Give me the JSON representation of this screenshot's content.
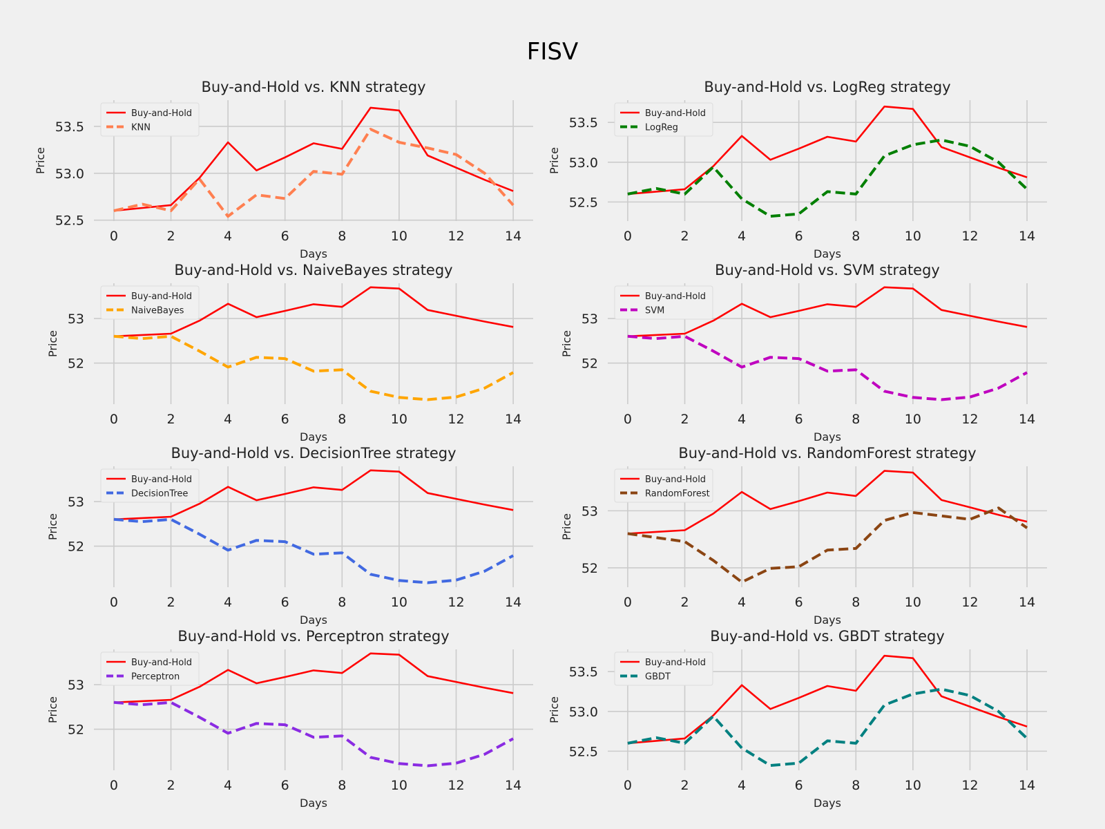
{
  "figure": {
    "title": "FISV",
    "background": "#f0f0f0"
  },
  "chart_data": [
    {
      "type": "line",
      "title": "Buy-and-Hold vs. KNN strategy",
      "xlabel": "Days",
      "ylabel": "Price",
      "xlim": [
        -0.7,
        14.7
      ],
      "ylim": [
        52.49,
        53.78
      ],
      "xticks": [
        0,
        2,
        4,
        6,
        8,
        10,
        12,
        14
      ],
      "yticks": [
        52.5,
        53.0,
        53.5
      ],
      "ytick_labels": [
        "52.5",
        "53.0",
        "53.5"
      ],
      "grid": true,
      "legend_position": "upper-left",
      "x": [
        0,
        1,
        2,
        3,
        4,
        5,
        6,
        7,
        8,
        9,
        10,
        11,
        12,
        13,
        14
      ],
      "series": [
        {
          "name": "Buy-and-Hold",
          "color": "#ff0000",
          "style": "solid",
          "values": [
            52.6,
            52.63,
            52.66,
            52.95,
            53.33,
            53.03,
            53.17,
            53.32,
            53.26,
            53.7,
            53.67,
            53.19,
            53.06,
            52.93,
            52.81
          ]
        },
        {
          "name": "KNN",
          "color": "#ff7f50",
          "style": "dashed",
          "values": [
            52.6,
            52.67,
            52.6,
            52.94,
            52.54,
            52.77,
            52.73,
            53.02,
            52.99,
            53.47,
            53.33,
            53.27,
            53.2,
            53.0,
            52.66
          ]
        }
      ]
    },
    {
      "type": "line",
      "title": "Buy-and-Hold vs. LogReg strategy",
      "xlabel": "Days",
      "ylabel": "Price",
      "xlim": [
        -0.7,
        14.7
      ],
      "ylim": [
        52.26,
        53.78
      ],
      "xticks": [
        0,
        2,
        4,
        6,
        8,
        10,
        12,
        14
      ],
      "yticks": [
        52.5,
        53.0,
        53.5
      ],
      "ytick_labels": [
        "52.5",
        "53.0",
        "53.5"
      ],
      "grid": true,
      "legend_position": "upper-left",
      "x": [
        0,
        1,
        2,
        3,
        4,
        5,
        6,
        7,
        8,
        9,
        10,
        11,
        12,
        13,
        14
      ],
      "series": [
        {
          "name": "Buy-and-Hold",
          "color": "#ff0000",
          "style": "solid",
          "values": [
            52.6,
            52.63,
            52.66,
            52.95,
            53.33,
            53.03,
            53.17,
            53.32,
            53.26,
            53.7,
            53.67,
            53.19,
            53.06,
            52.93,
            52.81
          ]
        },
        {
          "name": "LogReg",
          "color": "#007f00",
          "style": "dashed",
          "values": [
            52.6,
            52.67,
            52.6,
            52.94,
            52.54,
            52.32,
            52.35,
            52.63,
            52.6,
            53.08,
            53.22,
            53.28,
            53.2,
            53.0,
            52.66
          ]
        }
      ]
    },
    {
      "type": "line",
      "title": "Buy-and-Hold vs. NaiveBayes strategy",
      "xlabel": "Days",
      "ylabel": "Price",
      "xlim": [
        -0.7,
        14.7
      ],
      "ylim": [
        51.08,
        53.79
      ],
      "xticks": [
        0,
        2,
        4,
        6,
        8,
        10,
        12,
        14
      ],
      "yticks": [
        52,
        53
      ],
      "ytick_labels": [
        "52",
        "53"
      ],
      "grid": true,
      "legend_position": "upper-left",
      "x": [
        0,
        1,
        2,
        3,
        4,
        5,
        6,
        7,
        8,
        9,
        10,
        11,
        12,
        13,
        14
      ],
      "series": [
        {
          "name": "Buy-and-Hold",
          "color": "#ff0000",
          "style": "solid",
          "values": [
            52.6,
            52.63,
            52.66,
            52.95,
            53.33,
            53.03,
            53.17,
            53.32,
            53.26,
            53.7,
            53.67,
            53.19,
            53.06,
            52.93,
            52.81
          ]
        },
        {
          "name": "NaiveBayes",
          "color": "#ffa500",
          "style": "dashed",
          "values": [
            52.6,
            52.55,
            52.6,
            52.27,
            51.91,
            52.13,
            52.1,
            51.82,
            51.85,
            51.37,
            51.23,
            51.18,
            51.24,
            51.44,
            51.79
          ]
        }
      ]
    },
    {
      "type": "line",
      "title": "Buy-and-Hold vs. SVM strategy",
      "xlabel": "Days",
      "ylabel": "Price",
      "xlim": [
        -0.7,
        14.7
      ],
      "ylim": [
        51.08,
        53.79
      ],
      "xticks": [
        0,
        2,
        4,
        6,
        8,
        10,
        12,
        14
      ],
      "yticks": [
        52,
        53
      ],
      "ytick_labels": [
        "52",
        "53"
      ],
      "grid": true,
      "legend_position": "upper-left",
      "x": [
        0,
        1,
        2,
        3,
        4,
        5,
        6,
        7,
        8,
        9,
        10,
        11,
        12,
        13,
        14
      ],
      "series": [
        {
          "name": "Buy-and-Hold",
          "color": "#ff0000",
          "style": "solid",
          "values": [
            52.6,
            52.63,
            52.66,
            52.95,
            53.33,
            53.03,
            53.17,
            53.32,
            53.26,
            53.7,
            53.67,
            53.19,
            53.06,
            52.93,
            52.81
          ]
        },
        {
          "name": "SVM",
          "color": "#bf00bf",
          "style": "dashed",
          "values": [
            52.6,
            52.55,
            52.6,
            52.27,
            51.91,
            52.13,
            52.1,
            51.82,
            51.85,
            51.37,
            51.23,
            51.18,
            51.24,
            51.44,
            51.79
          ]
        }
      ]
    },
    {
      "type": "line",
      "title": "Buy-and-Hold vs. DecisionTree strategy",
      "xlabel": "Days",
      "ylabel": "Price",
      "xlim": [
        -0.7,
        14.7
      ],
      "ylim": [
        51.08,
        53.79
      ],
      "xticks": [
        0,
        2,
        4,
        6,
        8,
        10,
        12,
        14
      ],
      "yticks": [
        52,
        53
      ],
      "ytick_labels": [
        "52",
        "53"
      ],
      "grid": true,
      "legend_position": "upper-left",
      "x": [
        0,
        1,
        2,
        3,
        4,
        5,
        6,
        7,
        8,
        9,
        10,
        11,
        12,
        13,
        14
      ],
      "series": [
        {
          "name": "Buy-and-Hold",
          "color": "#ff0000",
          "style": "solid",
          "values": [
            52.6,
            52.63,
            52.66,
            52.95,
            53.33,
            53.03,
            53.17,
            53.32,
            53.26,
            53.7,
            53.67,
            53.19,
            53.06,
            52.93,
            52.81
          ]
        },
        {
          "name": "DecisionTree",
          "color": "#4169e1",
          "style": "dashed",
          "values": [
            52.6,
            52.55,
            52.6,
            52.27,
            51.91,
            52.13,
            52.1,
            51.82,
            51.85,
            51.37,
            51.23,
            51.18,
            51.24,
            51.44,
            51.79
          ]
        }
      ]
    },
    {
      "type": "line",
      "title": "Buy-and-Hold vs. RandomForest strategy",
      "xlabel": "Days",
      "ylabel": "Price",
      "xlim": [
        -0.7,
        14.7
      ],
      "ylim": [
        51.66,
        53.78
      ],
      "xticks": [
        0,
        2,
        4,
        6,
        8,
        10,
        12,
        14
      ],
      "yticks": [
        52,
        53
      ],
      "ytick_labels": [
        "52",
        "53"
      ],
      "grid": true,
      "legend_position": "upper-left",
      "x": [
        0,
        1,
        2,
        3,
        4,
        5,
        6,
        7,
        8,
        9,
        10,
        11,
        12,
        13,
        14
      ],
      "series": [
        {
          "name": "Buy-and-Hold",
          "color": "#ff0000",
          "style": "solid",
          "values": [
            52.6,
            52.63,
            52.66,
            52.95,
            53.33,
            53.03,
            53.17,
            53.32,
            53.26,
            53.7,
            53.67,
            53.19,
            53.06,
            52.93,
            52.81
          ]
        },
        {
          "name": "RandomForest",
          "color": "#8b4513",
          "style": "dashed",
          "values": [
            52.6,
            52.53,
            52.46,
            52.13,
            51.75,
            51.99,
            52.02,
            52.31,
            52.34,
            52.83,
            52.97,
            52.91,
            52.85,
            53.05,
            52.7
          ]
        }
      ]
    },
    {
      "type": "line",
      "title": "Buy-and-Hold vs. Perceptron strategy",
      "xlabel": "Days",
      "ylabel": "Price",
      "xlim": [
        -0.7,
        14.7
      ],
      "ylim": [
        51.08,
        53.79
      ],
      "xticks": [
        0,
        2,
        4,
        6,
        8,
        10,
        12,
        14
      ],
      "yticks": [
        52,
        53
      ],
      "ytick_labels": [
        "52",
        "53"
      ],
      "grid": true,
      "legend_position": "upper-left",
      "x": [
        0,
        1,
        2,
        3,
        4,
        5,
        6,
        7,
        8,
        9,
        10,
        11,
        12,
        13,
        14
      ],
      "series": [
        {
          "name": "Buy-and-Hold",
          "color": "#ff0000",
          "style": "solid",
          "values": [
            52.6,
            52.63,
            52.66,
            52.95,
            53.33,
            53.03,
            53.17,
            53.32,
            53.26,
            53.7,
            53.67,
            53.19,
            53.06,
            52.93,
            52.81
          ]
        },
        {
          "name": "Perceptron",
          "color": "#8a2be2",
          "style": "dashed",
          "values": [
            52.6,
            52.55,
            52.6,
            52.27,
            51.91,
            52.13,
            52.1,
            51.82,
            51.85,
            51.37,
            51.23,
            51.18,
            51.24,
            51.44,
            51.79
          ]
        }
      ]
    },
    {
      "type": "line",
      "title": "Buy-and-Hold vs. GBDT strategy",
      "xlabel": "Days",
      "ylabel": "Price",
      "xlim": [
        -0.7,
        14.7
      ],
      "ylim": [
        52.26,
        53.78
      ],
      "xticks": [
        0,
        2,
        4,
        6,
        8,
        10,
        12,
        14
      ],
      "yticks": [
        52.5,
        53.0,
        53.5
      ],
      "ytick_labels": [
        "52.5",
        "53.0",
        "53.5"
      ],
      "grid": true,
      "legend_position": "upper-left",
      "x": [
        0,
        1,
        2,
        3,
        4,
        5,
        6,
        7,
        8,
        9,
        10,
        11,
        12,
        13,
        14
      ],
      "series": [
        {
          "name": "Buy-and-Hold",
          "color": "#ff0000",
          "style": "solid",
          "values": [
            52.6,
            52.63,
            52.66,
            52.95,
            53.33,
            53.03,
            53.17,
            53.32,
            53.26,
            53.7,
            53.67,
            53.19,
            53.06,
            52.93,
            52.81
          ]
        },
        {
          "name": "GBDT",
          "color": "#008080",
          "style": "dashed",
          "values": [
            52.6,
            52.67,
            52.6,
            52.94,
            52.54,
            52.32,
            52.35,
            52.63,
            52.6,
            53.08,
            53.22,
            53.28,
            53.2,
            53.0,
            52.66
          ]
        }
      ]
    }
  ]
}
